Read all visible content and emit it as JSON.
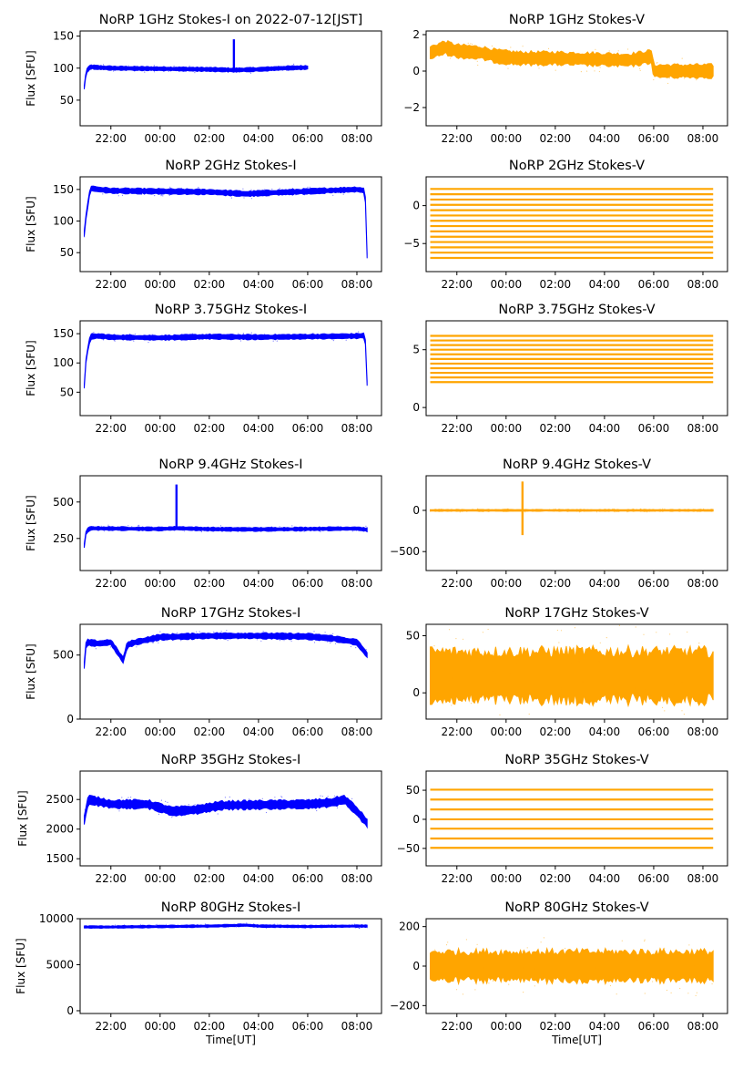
{
  "figure": {
    "colors": {
      "stokes_i": "#0000ff",
      "stokes_v": "#ffa500",
      "axes": "#000000",
      "background": "#ffffff"
    }
  },
  "chart_data": [
    {
      "type": "scatter",
      "title": "NoRP 1GHz Stokes-I on 2022-07-12[JST]",
      "ylabel": "Flux [SFU]",
      "xlabel": "",
      "series_color": "stokes_i",
      "ylim": [
        10,
        158
      ],
      "yticks": [
        {
          "value": 50,
          "label": "50"
        },
        {
          "value": 100,
          "label": "100"
        },
        {
          "value": 150,
          "label": "150"
        }
      ],
      "x_range": [
        "20:45",
        "09:00"
      ],
      "xticks": [
        "22:00",
        "00:00",
        "02:00",
        "04:00",
        "06:00",
        "08:00"
      ],
      "data_end": "06:00",
      "series": [
        {
          "x": [
            "20:55",
            "21:00",
            "21:10",
            "21:30",
            "22:00",
            "00:00",
            "02:00",
            "03:00",
            "04:00",
            "05:00",
            "06:00"
          ],
          "y": [
            70,
            95,
            102,
            101,
            100,
            99,
            98,
            97,
            98,
            100,
            101
          ]
        }
      ],
      "spread": 3,
      "spikes": [
        {
          "x": "03:00",
          "y": 145
        }
      ]
    },
    {
      "type": "scatter",
      "title": "NoRP 1GHz Stokes-V",
      "ylabel": "",
      "xlabel": "",
      "series_color": "stokes_v",
      "ylim": [
        -3,
        2.2
      ],
      "yticks": [
        {
          "value": -2,
          "label": "−2"
        },
        {
          "value": 0,
          "label": "0"
        },
        {
          "value": 2,
          "label": "2"
        }
      ],
      "x_range": [
        "20:45",
        "09:00"
      ],
      "xticks": [
        "22:00",
        "00:00",
        "02:00",
        "04:00",
        "06:00",
        "08:00"
      ],
      "data_end": "08:25",
      "series": [
        {
          "x": [
            "20:55",
            "21:30",
            "22:00",
            "23:00",
            "23:40",
            "00:30",
            "02:00",
            "03:30",
            "05:00",
            "05:55",
            "06:00",
            "08:25"
          ],
          "y": [
            1.0,
            1.3,
            1.1,
            1.0,
            0.8,
            0.7,
            0.7,
            0.65,
            0.6,
            0.8,
            0.0,
            0.0
          ]
        }
      ],
      "spread": 0.35,
      "spikes": []
    },
    {
      "type": "scatter",
      "title": "NoRP 2GHz Stokes-I",
      "ylabel": "Flux [SFU]",
      "xlabel": "",
      "series_color": "stokes_i",
      "ylim": [
        20,
        170
      ],
      "yticks": [
        {
          "value": 50,
          "label": "50"
        },
        {
          "value": 100,
          "label": "100"
        },
        {
          "value": 150,
          "label": "150"
        }
      ],
      "x_range": [
        "20:45",
        "09:00"
      ],
      "xticks": [
        "22:00",
        "00:00",
        "02:00",
        "04:00",
        "06:00",
        "08:00"
      ],
      "data_end": "08:25",
      "series": [
        {
          "x": [
            "20:55",
            "21:00",
            "21:10",
            "21:30",
            "22:00",
            "00:00",
            "02:00",
            "03:30",
            "04:00",
            "06:00",
            "08:00",
            "08:20",
            "08:25"
          ],
          "y": [
            80,
            110,
            152,
            150,
            148,
            147,
            146,
            143,
            144,
            147,
            150,
            148,
            45
          ]
        }
      ],
      "spread": 4,
      "spikes": []
    },
    {
      "type": "scatter",
      "title": "NoRP 2GHz Stokes-V",
      "ylabel": "",
      "xlabel": "",
      "series_color": "stokes_v",
      "ylim": [
        -8.7,
        3.8
      ],
      "yticks": [
        {
          "value": -5,
          "label": "−5"
        },
        {
          "value": 0,
          "label": "0"
        }
      ],
      "x_range": [
        "20:45",
        "09:00"
      ],
      "xticks": [
        "22:00",
        "00:00",
        "02:00",
        "04:00",
        "06:00",
        "08:00"
      ],
      "data_end": "08:25",
      "band_levels": [
        2.2,
        1.5,
        0.8,
        0.1,
        -0.6,
        -1.3,
        -2.0,
        -2.7,
        -3.4,
        -4.1,
        -4.8,
        -5.5,
        -6.2,
        -6.9
      ],
      "series": [],
      "spread": 0,
      "spikes": []
    },
    {
      "type": "scatter",
      "title": "NoRP 3.75GHz Stokes-I",
      "ylabel": "Flux [SFU]",
      "xlabel": "",
      "series_color": "stokes_i",
      "ylim": [
        10,
        172
      ],
      "yticks": [
        {
          "value": 50,
          "label": "50"
        },
        {
          "value": 100,
          "label": "100"
        },
        {
          "value": 150,
          "label": "150"
        }
      ],
      "x_range": [
        "20:45",
        "09:00"
      ],
      "xticks": [
        "22:00",
        "00:00",
        "02:00",
        "04:00",
        "06:00",
        "08:00"
      ],
      "data_end": "08:25",
      "series": [
        {
          "x": [
            "20:55",
            "21:00",
            "21:10",
            "21:30",
            "22:00",
            "00:00",
            "02:00",
            "04:00",
            "06:00",
            "08:00",
            "08:20",
            "08:25"
          ],
          "y": [
            60,
            110,
            145,
            146,
            144,
            143,
            145,
            144,
            145,
            146,
            147,
            65
          ]
        }
      ],
      "spread": 4,
      "spikes": []
    },
    {
      "type": "scatter",
      "title": "NoRP 3.75GHz Stokes-V",
      "ylabel": "",
      "xlabel": "",
      "series_color": "stokes_v",
      "ylim": [
        -0.7,
        7.5
      ],
      "yticks": [
        {
          "value": 0,
          "label": "0"
        },
        {
          "value": 5,
          "label": "5"
        }
      ],
      "x_range": [
        "20:45",
        "09:00"
      ],
      "xticks": [
        "22:00",
        "00:00",
        "02:00",
        "04:00",
        "06:00",
        "08:00"
      ],
      "data_end": "08:25",
      "band_levels": [
        6.2,
        5.8,
        5.4,
        5.0,
        4.6,
        4.2,
        3.8,
        3.4,
        3.0,
        2.6,
        2.2
      ],
      "series": [],
      "spread": 0,
      "spikes": []
    },
    {
      "type": "scatter",
      "title": "NoRP 9.4GHz Stokes-I",
      "ylabel": "Flux [SFU]",
      "xlabel": "",
      "series_color": "stokes_i",
      "ylim": [
        30,
        680
      ],
      "yticks": [
        {
          "value": 250,
          "label": "250"
        },
        {
          "value": 500,
          "label": "500"
        }
      ],
      "x_range": [
        "20:45",
        "09:00"
      ],
      "xticks": [
        "22:00",
        "00:00",
        "02:00",
        "04:00",
        "06:00",
        "08:00"
      ],
      "data_end": "08:25",
      "series": [
        {
          "x": [
            "20:55",
            "21:00",
            "21:10",
            "22:00",
            "00:00",
            "00:40",
            "02:00",
            "04:00",
            "06:00",
            "08:00",
            "08:25"
          ],
          "y": [
            200,
            300,
            320,
            318,
            315,
            320,
            314,
            312,
            315,
            318,
            310
          ]
        }
      ],
      "spread": 12,
      "spikes": [
        {
          "x": "00:40",
          "y": 620
        }
      ]
    },
    {
      "type": "scatter",
      "title": "NoRP 9.4GHz Stokes-V",
      "ylabel": "",
      "xlabel": "",
      "series_color": "stokes_v",
      "ylim": [
        -730,
        420
      ],
      "yticks": [
        {
          "value": -500,
          "label": "−500"
        },
        {
          "value": 0,
          "label": "0"
        }
      ],
      "x_range": [
        "20:45",
        "09:00"
      ],
      "xticks": [
        "22:00",
        "00:00",
        "02:00",
        "04:00",
        "06:00",
        "08:00"
      ],
      "data_end": "08:25",
      "series": [
        {
          "x": [
            "20:55",
            "08:25"
          ],
          "y": [
            0,
            0
          ]
        }
      ],
      "spread": 10,
      "spikes": [
        {
          "x": "00:40",
          "y": 350
        },
        {
          "x": "00:40",
          "y": -300
        }
      ]
    },
    {
      "type": "scatter",
      "title": "NoRP 17GHz Stokes-I",
      "ylabel": "Flux [SFU]",
      "xlabel": "",
      "series_color": "stokes_i",
      "ylim": [
        0,
        740
      ],
      "yticks": [
        {
          "value": 0,
          "label": "0"
        },
        {
          "value": 500,
          "label": "500"
        }
      ],
      "x_range": [
        "20:45",
        "09:00"
      ],
      "xticks": [
        "22:00",
        "00:00",
        "02:00",
        "04:00",
        "06:00",
        "08:00"
      ],
      "data_end": "08:25",
      "series": [
        {
          "x": [
            "20:55",
            "21:00",
            "21:30",
            "22:00",
            "22:30",
            "22:40",
            "23:00",
            "00:00",
            "02:00",
            "04:00",
            "06:00",
            "07:00",
            "08:00",
            "08:25"
          ],
          "y": [
            420,
            600,
            590,
            600,
            460,
            580,
            600,
            640,
            650,
            650,
            645,
            630,
            600,
            500
          ]
        }
      ],
      "spread": 22,
      "spikes": []
    },
    {
      "type": "scatter",
      "title": "NoRP 17GHz Stokes-V",
      "ylabel": "",
      "xlabel": "",
      "series_color": "stokes_v",
      "ylim": [
        -23,
        60
      ],
      "yticks": [
        {
          "value": 0,
          "label": "0"
        },
        {
          "value": 50,
          "label": "50"
        }
      ],
      "x_range": [
        "20:45",
        "09:00"
      ],
      "xticks": [
        "22:00",
        "00:00",
        "02:00",
        "04:00",
        "06:00",
        "08:00"
      ],
      "data_end": "08:25",
      "series": [
        {
          "x": [
            "20:55",
            "08:25"
          ],
          "y": [
            15,
            15
          ]
        }
      ],
      "spread": 22,
      "spikes": []
    },
    {
      "type": "scatter",
      "title": "NoRP 35GHz Stokes-I",
      "ylabel": "Flux [SFU]",
      "xlabel": "",
      "series_color": "stokes_i",
      "ylim": [
        1380,
        2980
      ],
      "yticks": [
        {
          "value": 1500,
          "label": "1500"
        },
        {
          "value": 2000,
          "label": "2000"
        },
        {
          "value": 2500,
          "label": "2500"
        }
      ],
      "x_range": [
        "20:45",
        "09:00"
      ],
      "xticks": [
        "22:00",
        "00:00",
        "02:00",
        "04:00",
        "06:00",
        "08:00"
      ],
      "data_end": "08:25",
      "series": [
        {
          "x": [
            "20:55",
            "21:05",
            "22:00",
            "23:30",
            "00:30",
            "01:30",
            "02:30",
            "04:00",
            "06:00",
            "07:00",
            "07:30",
            "08:00",
            "08:25"
          ],
          "y": [
            2150,
            2500,
            2420,
            2420,
            2300,
            2330,
            2400,
            2410,
            2420,
            2450,
            2500,
            2300,
            2100
          ]
        }
      ],
      "spread": 70,
      "spikes": []
    },
    {
      "type": "scatter",
      "title": "NoRP 35GHz Stokes-V",
      "ylabel": "",
      "xlabel": "",
      "series_color": "stokes_v",
      "ylim": [
        -80,
        83
      ],
      "yticks": [
        {
          "value": -50,
          "label": "−50"
        },
        {
          "value": 0,
          "label": "0"
        },
        {
          "value": 50,
          "label": "50"
        }
      ],
      "x_range": [
        "20:45",
        "09:00"
      ],
      "xticks": [
        "22:00",
        "00:00",
        "02:00",
        "04:00",
        "06:00",
        "08:00"
      ],
      "data_end": "08:25",
      "band_levels": [
        51,
        34,
        17,
        0,
        -16,
        -33,
        -49
      ],
      "series": [],
      "spread": 0,
      "spikes": []
    },
    {
      "type": "scatter",
      "title": "NoRP 80GHz Stokes-I",
      "ylabel": "Flux [SFU]",
      "xlabel": "Time[UT]",
      "series_color": "stokes_i",
      "ylim": [
        -300,
        10000
      ],
      "yticks": [
        {
          "value": 0,
          "label": "0"
        },
        {
          "value": 5000,
          "label": "5000"
        },
        {
          "value": 10000,
          "label": "10000"
        }
      ],
      "x_range": [
        "20:45",
        "09:00"
      ],
      "xticks": [
        "22:00",
        "00:00",
        "02:00",
        "04:00",
        "06:00",
        "08:00"
      ],
      "data_end": "08:25",
      "series": [
        {
          "x": [
            "20:55",
            "22:00",
            "00:00",
            "02:00",
            "03:30",
            "04:00",
            "06:00",
            "08:00",
            "08:25"
          ],
          "y": [
            9100,
            9100,
            9150,
            9200,
            9300,
            9200,
            9150,
            9200,
            9200
          ]
        }
      ],
      "spread": 120,
      "spikes": []
    },
    {
      "type": "scatter",
      "title": "NoRP 80GHz Stokes-V",
      "ylabel": "",
      "xlabel": "Time[UT]",
      "series_color": "stokes_v",
      "ylim": [
        -240,
        240
      ],
      "yticks": [
        {
          "value": -200,
          "label": "−200"
        },
        {
          "value": 0,
          "label": "0"
        },
        {
          "value": 200,
          "label": "200"
        }
      ],
      "x_range": [
        "20:45",
        "09:00"
      ],
      "xticks": [
        "22:00",
        "00:00",
        "02:00",
        "04:00",
        "06:00",
        "08:00"
      ],
      "data_end": "08:25",
      "series": [
        {
          "x": [
            "20:55",
            "08:25"
          ],
          "y": [
            0,
            0
          ]
        }
      ],
      "spread": 75,
      "spikes": []
    }
  ]
}
